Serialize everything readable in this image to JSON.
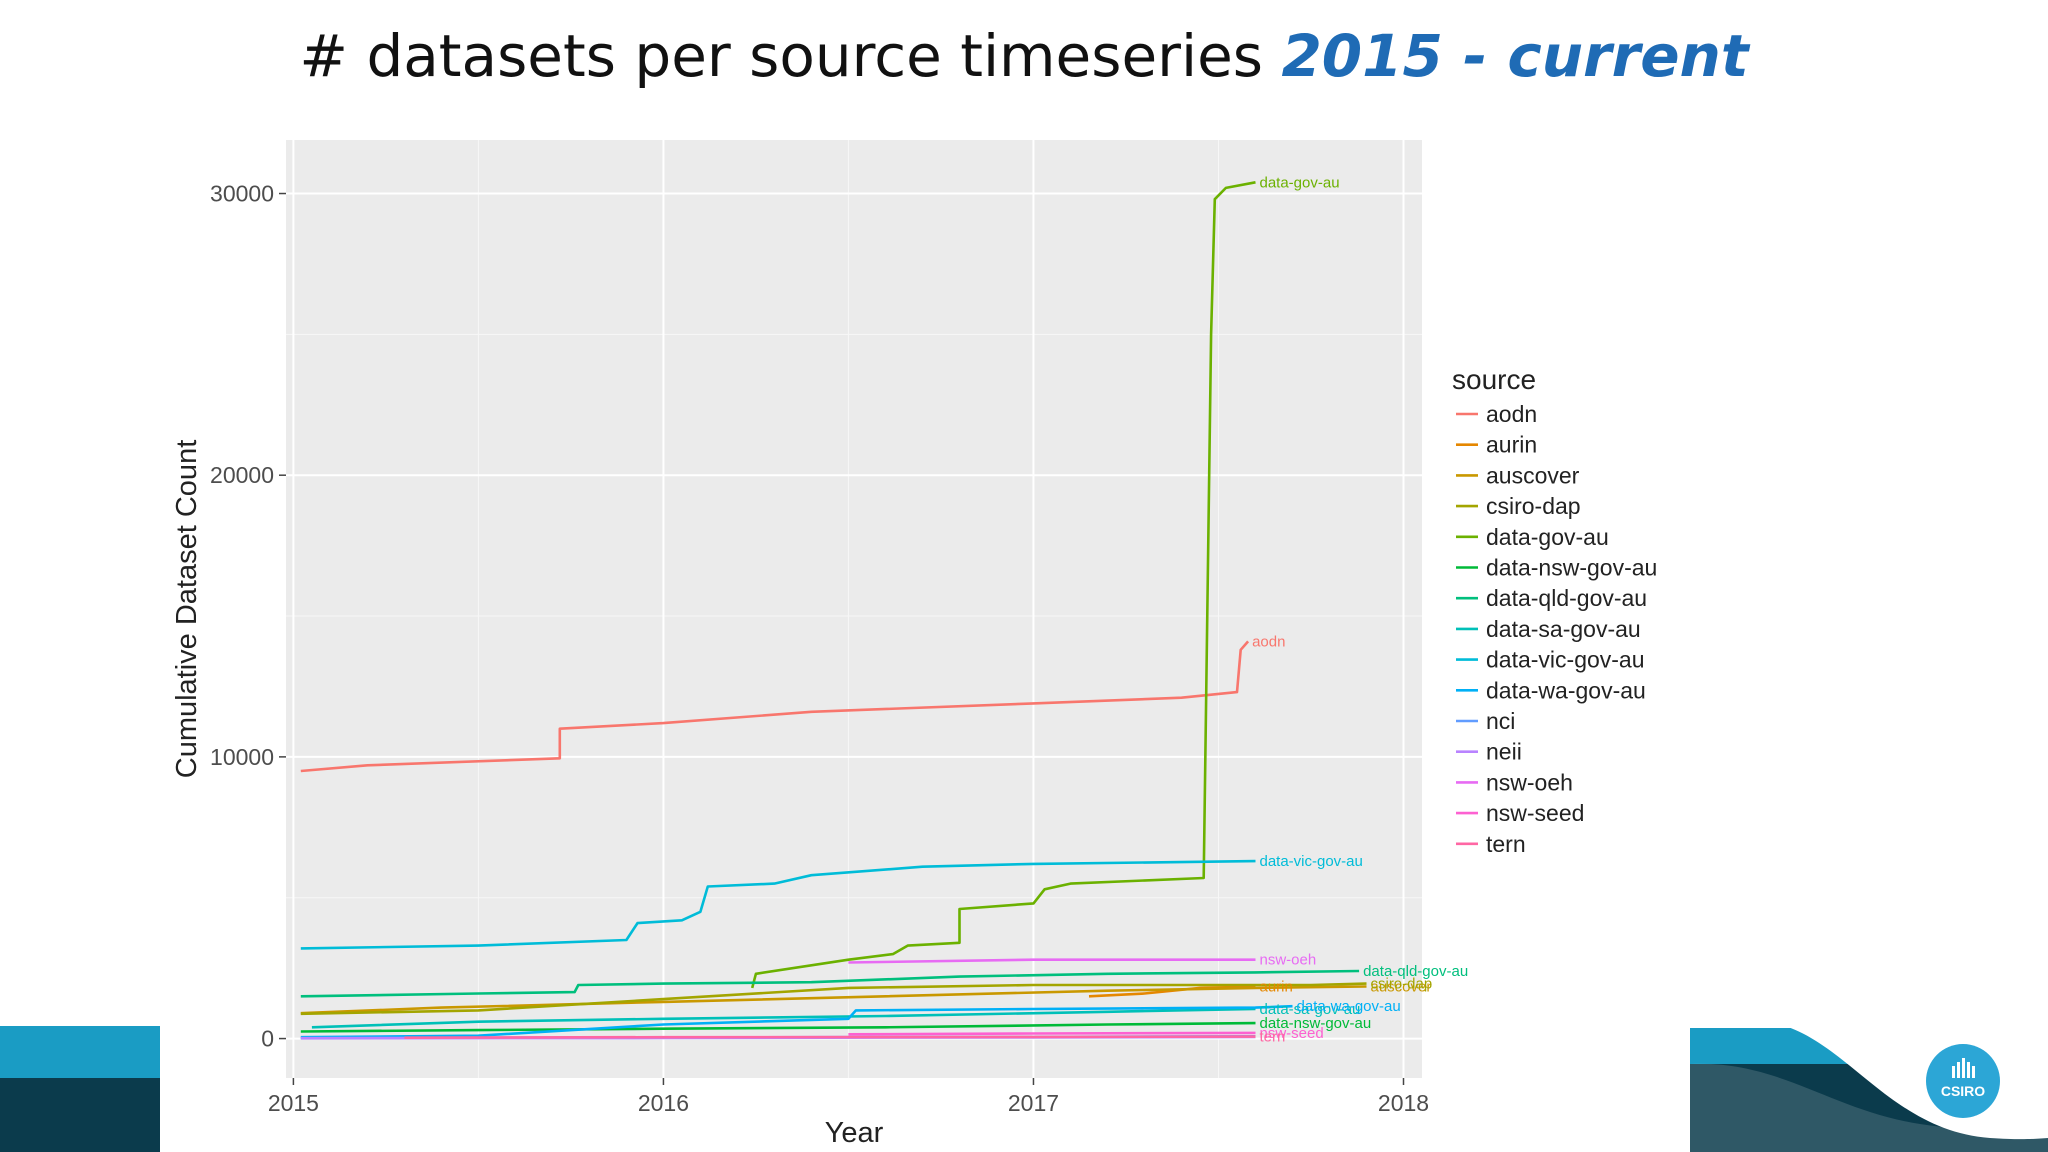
{
  "slide": {
    "title_main": "# datasets per source timeseries",
    "title_accent": "2015 - current",
    "logo_text": "CSIRO"
  },
  "colors": {
    "title_accent": "#1f6bb5",
    "panel_bg": "#ebebeb",
    "footer_teal": "#1a9cc4",
    "footer_dark": "#0b3b4c",
    "logo_bg": "#2ca6d6"
  },
  "chart_data": {
    "type": "line",
    "title": "",
    "xlabel": "Year",
    "ylabel": "Cumulative Dataset Count",
    "xlim": [
      2014.98,
      2018.05
    ],
    "ylim": [
      -1400,
      31900
    ],
    "x_ticks": [
      2015,
      2016,
      2017,
      2018
    ],
    "x_tick_labels": [
      "2015",
      "2016",
      "2017",
      "2018"
    ],
    "y_ticks": [
      0,
      10000,
      20000,
      30000
    ],
    "y_tick_labels": [
      "0",
      "10000",
      "20000",
      "30000"
    ],
    "grid": true,
    "legend": {
      "title": "source",
      "position": "right",
      "entries": [
        "aodn",
        "aurin",
        "auscover",
        "csiro-dap",
        "data-gov-au",
        "data-nsw-gov-au",
        "data-qld-gov-au",
        "data-sa-gov-au",
        "data-vic-gov-au",
        "data-wa-gov-au",
        "nci",
        "neii",
        "nsw-oeh",
        "nsw-seed",
        "tern"
      ]
    },
    "series": [
      {
        "name": "aodn",
        "color": "#F8766D",
        "end_label": "aodn",
        "points": [
          [
            2015.02,
            9500
          ],
          [
            2015.2,
            9700
          ],
          [
            2015.72,
            9950
          ],
          [
            2015.72,
            11000
          ],
          [
            2016.0,
            11200
          ],
          [
            2016.4,
            11600
          ],
          [
            2017.0,
            11900
          ],
          [
            2017.4,
            12100
          ],
          [
            2017.55,
            12300
          ],
          [
            2017.56,
            13800
          ],
          [
            2017.58,
            14100
          ]
        ]
      },
      {
        "name": "aurin",
        "color": "#E58700",
        "end_label": "aurin",
        "points": [
          [
            2017.15,
            1500
          ],
          [
            2017.3,
            1600
          ],
          [
            2017.45,
            1800
          ],
          [
            2017.6,
            1850
          ]
        ]
      },
      {
        "name": "auscover",
        "color": "#C99800",
        "end_label": "auscover",
        "points": [
          [
            2015.02,
            900
          ],
          [
            2015.4,
            1100
          ],
          [
            2016.0,
            1300
          ],
          [
            2016.6,
            1500
          ],
          [
            2017.2,
            1700
          ],
          [
            2017.6,
            1800
          ],
          [
            2017.9,
            1850
          ]
        ]
      },
      {
        "name": "csiro-dap",
        "color": "#A3A500",
        "end_label": "csiro-dap",
        "points": [
          [
            2015.02,
            880
          ],
          [
            2015.5,
            1000
          ],
          [
            2016.0,
            1400
          ],
          [
            2016.5,
            1800
          ],
          [
            2017.0,
            1900
          ],
          [
            2017.5,
            1900
          ],
          [
            2017.75,
            1900
          ],
          [
            2017.9,
            1950
          ]
        ]
      },
      {
        "name": "data-gov-au",
        "color": "#6BB100",
        "end_label": "data-gov-au",
        "points": [
          [
            2016.24,
            1800
          ],
          [
            2016.25,
            2300
          ],
          [
            2016.5,
            2800
          ],
          [
            2016.62,
            3000
          ],
          [
            2016.66,
            3300
          ],
          [
            2016.8,
            3400
          ],
          [
            2016.8,
            4600
          ],
          [
            2017.0,
            4800
          ],
          [
            2017.03,
            5300
          ],
          [
            2017.1,
            5500
          ],
          [
            2017.46,
            5700
          ],
          [
            2017.48,
            25000
          ],
          [
            2017.49,
            29800
          ],
          [
            2017.52,
            30200
          ],
          [
            2017.6,
            30400
          ]
        ]
      },
      {
        "name": "data-nsw-gov-au",
        "color": "#00BA38",
        "end_label": "data-nsw-gov-au",
        "points": [
          [
            2015.02,
            250
          ],
          [
            2015.5,
            300
          ],
          [
            2016.0,
            350
          ],
          [
            2016.6,
            400
          ],
          [
            2017.2,
            500
          ],
          [
            2017.6,
            550
          ]
        ]
      },
      {
        "name": "data-qld-gov-au",
        "color": "#00BF7D",
        "end_label": "data-qld-gov-au",
        "points": [
          [
            2015.02,
            1500
          ],
          [
            2015.5,
            1600
          ],
          [
            2015.76,
            1650
          ],
          [
            2015.77,
            1900
          ],
          [
            2016.0,
            1950
          ],
          [
            2016.4,
            2000
          ],
          [
            2016.8,
            2200
          ],
          [
            2017.2,
            2300
          ],
          [
            2017.6,
            2350
          ],
          [
            2017.88,
            2400
          ]
        ]
      },
      {
        "name": "data-sa-gov-au",
        "color": "#00C0B8",
        "end_label": "data-sa-gov-au",
        "points": [
          [
            2015.05,
            400
          ],
          [
            2015.5,
            600
          ],
          [
            2016.0,
            700
          ],
          [
            2016.6,
            800
          ],
          [
            2017.2,
            950
          ],
          [
            2017.6,
            1050
          ]
        ]
      },
      {
        "name": "data-vic-gov-au",
        "color": "#00BCD8",
        "end_label": "data-vic-gov-au",
        "points": [
          [
            2015.02,
            3200
          ],
          [
            2015.5,
            3300
          ],
          [
            2015.9,
            3500
          ],
          [
            2015.93,
            4100
          ],
          [
            2016.05,
            4200
          ],
          [
            2016.1,
            4500
          ],
          [
            2016.12,
            5400
          ],
          [
            2016.3,
            5500
          ],
          [
            2016.4,
            5800
          ],
          [
            2016.7,
            6100
          ],
          [
            2017.0,
            6200
          ],
          [
            2017.6,
            6300
          ]
        ]
      },
      {
        "name": "data-wa-gov-au",
        "color": "#00B0F6",
        "end_label": "data-wa-gov-au",
        "points": [
          [
            2015.02,
            50
          ],
          [
            2015.5,
            100
          ],
          [
            2016.0,
            500
          ],
          [
            2016.5,
            700
          ],
          [
            2016.52,
            1000
          ],
          [
            2017.0,
            1050
          ],
          [
            2017.6,
            1100
          ],
          [
            2017.7,
            1150
          ]
        ]
      },
      {
        "name": "nci",
        "color": "#619CFF",
        "end_label": "",
        "points": [
          [
            2015.02,
            20
          ],
          [
            2016.0,
            40
          ],
          [
            2017.0,
            60
          ],
          [
            2017.6,
            80
          ]
        ]
      },
      {
        "name": "neii",
        "color": "#B983FF",
        "end_label": "",
        "points": [
          [
            2015.02,
            10
          ],
          [
            2016.0,
            20
          ],
          [
            2017.0,
            40
          ],
          [
            2017.6,
            60
          ]
        ]
      },
      {
        "name": "nsw-oeh",
        "color": "#E76BF3",
        "end_label": "nsw-oeh",
        "points": [
          [
            2016.5,
            2700
          ],
          [
            2017.0,
            2800
          ],
          [
            2017.6,
            2800
          ]
        ]
      },
      {
        "name": "nsw-seed",
        "color": "#FD61D1",
        "end_label": "nsw-seed",
        "points": [
          [
            2016.5,
            150
          ],
          [
            2017.0,
            180
          ],
          [
            2017.6,
            200
          ]
        ]
      },
      {
        "name": "tern",
        "color": "#FF67A4",
        "end_label": "tern",
        "points": [
          [
            2015.3,
            30
          ],
          [
            2015.6,
            40
          ],
          [
            2016.0,
            50
          ],
          [
            2017.0,
            60
          ],
          [
            2017.6,
            70
          ]
        ]
      }
    ]
  }
}
